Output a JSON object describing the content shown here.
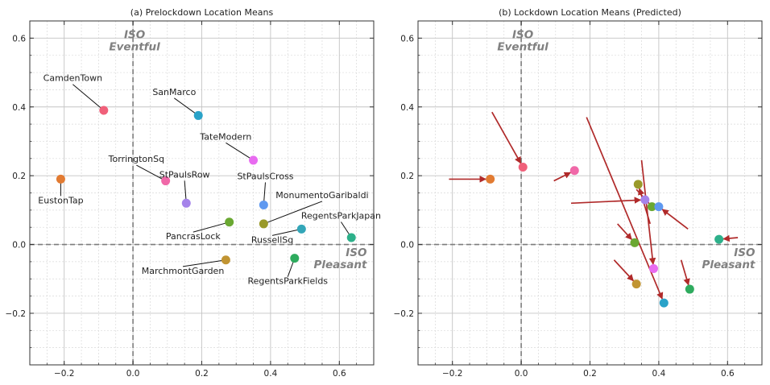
{
  "chart_data": [
    {
      "type": "scatter",
      "title": "(a) Prelockdown Location Means",
      "xlim": [
        -0.3,
        0.7
      ],
      "ylim": [
        -0.35,
        0.65
      ],
      "xticks": [
        -0.2,
        0.0,
        0.2,
        0.4,
        0.6
      ],
      "yticks": [
        -0.2,
        0.0,
        0.2,
        0.4,
        0.6
      ],
      "xtick_labels": [
        "−0.2",
        "0.0",
        "0.2",
        "0.4",
        "0.6"
      ],
      "ytick_labels": [
        "−0.2",
        "0.0",
        "0.2",
        "0.4",
        "0.6"
      ],
      "grid": true,
      "annotations": [
        {
          "lines": [
            "ISO",
            "Eventful"
          ],
          "x": 0.0,
          "y": 0.6
        },
        {
          "lines": [
            "ISO",
            "Pleasant"
          ],
          "x": 0.68,
          "y": -0.02
        }
      ],
      "points": [
        {
          "label": "CamdenTown",
          "x": -0.085,
          "y": 0.39,
          "color": "#f0607a",
          "lx": -0.175,
          "ly": 0.475
        },
        {
          "label": "EustonTap",
          "x": -0.21,
          "y": 0.19,
          "color": "#e27b32",
          "lx": -0.21,
          "ly": 0.12
        },
        {
          "label": "SanMarco",
          "x": 0.19,
          "y": 0.375,
          "color": "#2aa3c9",
          "lx": 0.12,
          "ly": 0.435
        },
        {
          "label": "TateModern",
          "x": 0.35,
          "y": 0.245,
          "color": "#e86bf0",
          "lx": 0.27,
          "ly": 0.305
        },
        {
          "label": "TorringtonSq",
          "x": 0.095,
          "y": 0.185,
          "color": "#f068a8",
          "lx": 0.01,
          "ly": 0.24
        },
        {
          "label": "StPaulsRow",
          "x": 0.155,
          "y": 0.12,
          "color": "#a583ea",
          "lx": 0.15,
          "ly": 0.195
        },
        {
          "label": "StPaulsCross",
          "x": 0.38,
          "y": 0.115,
          "color": "#5f99f0",
          "lx": 0.385,
          "ly": 0.19
        },
        {
          "label": "MonumentoGaribaldi",
          "x": 0.38,
          "y": 0.06,
          "color": "#9a9a2a",
          "lx": 0.55,
          "ly": 0.135
        },
        {
          "label": "RegentsParkJapan",
          "x": 0.635,
          "y": 0.02,
          "color": "#2db08a",
          "lx": 0.605,
          "ly": 0.075
        },
        {
          "label": "PancrasLock",
          "x": 0.28,
          "y": 0.065,
          "color": "#6aa832",
          "lx": 0.175,
          "ly": 0.015
        },
        {
          "label": "RussellSq",
          "x": 0.49,
          "y": 0.045,
          "color": "#33a6b8",
          "lx": 0.405,
          "ly": 0.005
        },
        {
          "label": "MarchmontGarden",
          "x": 0.27,
          "y": -0.045,
          "color": "#c19432",
          "lx": 0.145,
          "ly": -0.085
        },
        {
          "label": "RegentsParkFields",
          "x": 0.47,
          "y": -0.04,
          "color": "#2eab5e",
          "lx": 0.45,
          "ly": -0.115
        }
      ]
    },
    {
      "type": "scatter",
      "title": "(b) Lockdown Location Means (Predicted)",
      "xlim": [
        -0.3,
        0.7
      ],
      "ylim": [
        -0.35,
        0.65
      ],
      "xticks": [
        -0.2,
        0.0,
        0.2,
        0.4,
        0.6
      ],
      "yticks": [
        -0.2,
        0.0,
        0.2,
        0.4,
        0.6
      ],
      "xtick_labels": [
        "−0.2",
        "0.0",
        "0.2",
        "0.4",
        "0.6"
      ],
      "ytick_labels": [
        "−0.2",
        "0.0",
        "0.2",
        "0.4",
        "0.6"
      ],
      "grid": true,
      "annotations": [
        {
          "lines": [
            "ISO",
            "Eventful"
          ],
          "x": 0.0,
          "y": 0.6
        },
        {
          "lines": [
            "ISO",
            "Pleasant"
          ],
          "x": 0.68,
          "y": -0.02
        }
      ],
      "arrow_color": "#b02a2a",
      "points": [
        {
          "x": -0.09,
          "y": 0.19,
          "color": "#e27b32",
          "from": [
            -0.21,
            0.19
          ]
        },
        {
          "x": 0.005,
          "y": 0.225,
          "color": "#f0607a",
          "from": [
            -0.085,
            0.385
          ]
        },
        {
          "x": 0.155,
          "y": 0.215,
          "color": "#f068a8",
          "from": [
            0.095,
            0.185
          ]
        },
        {
          "x": 0.34,
          "y": 0.175,
          "color": "#9a9a2a",
          "from": [
            0.375,
            0.06
          ]
        },
        {
          "x": 0.36,
          "y": 0.13,
          "color": "#a583ea",
          "from": [
            0.145,
            0.12
          ]
        },
        {
          "x": 0.38,
          "y": 0.11,
          "color": "#6aa832",
          "from": [
            0.335,
            0.16
          ]
        },
        {
          "x": 0.4,
          "y": 0.11,
          "color": "#5f99f0",
          "from": [
            0.485,
            0.045
          ]
        },
        {
          "x": 0.33,
          "y": 0.005,
          "color": "#6aa832",
          "from": [
            0.28,
            0.06
          ]
        },
        {
          "x": 0.385,
          "y": -0.07,
          "color": "#e86bf0",
          "from": [
            0.35,
            0.245
          ]
        },
        {
          "x": 0.335,
          "y": -0.115,
          "color": "#c19432",
          "from": [
            0.27,
            -0.045
          ]
        },
        {
          "x": 0.415,
          "y": -0.17,
          "color": "#2aa3c9",
          "from": [
            0.19,
            0.37
          ]
        },
        {
          "x": 0.49,
          "y": -0.13,
          "color": "#2eab5e",
          "from": [
            0.465,
            -0.045
          ]
        },
        {
          "x": 0.575,
          "y": 0.015,
          "color": "#2db08a",
          "from": [
            0.63,
            0.02
          ]
        }
      ]
    }
  ]
}
